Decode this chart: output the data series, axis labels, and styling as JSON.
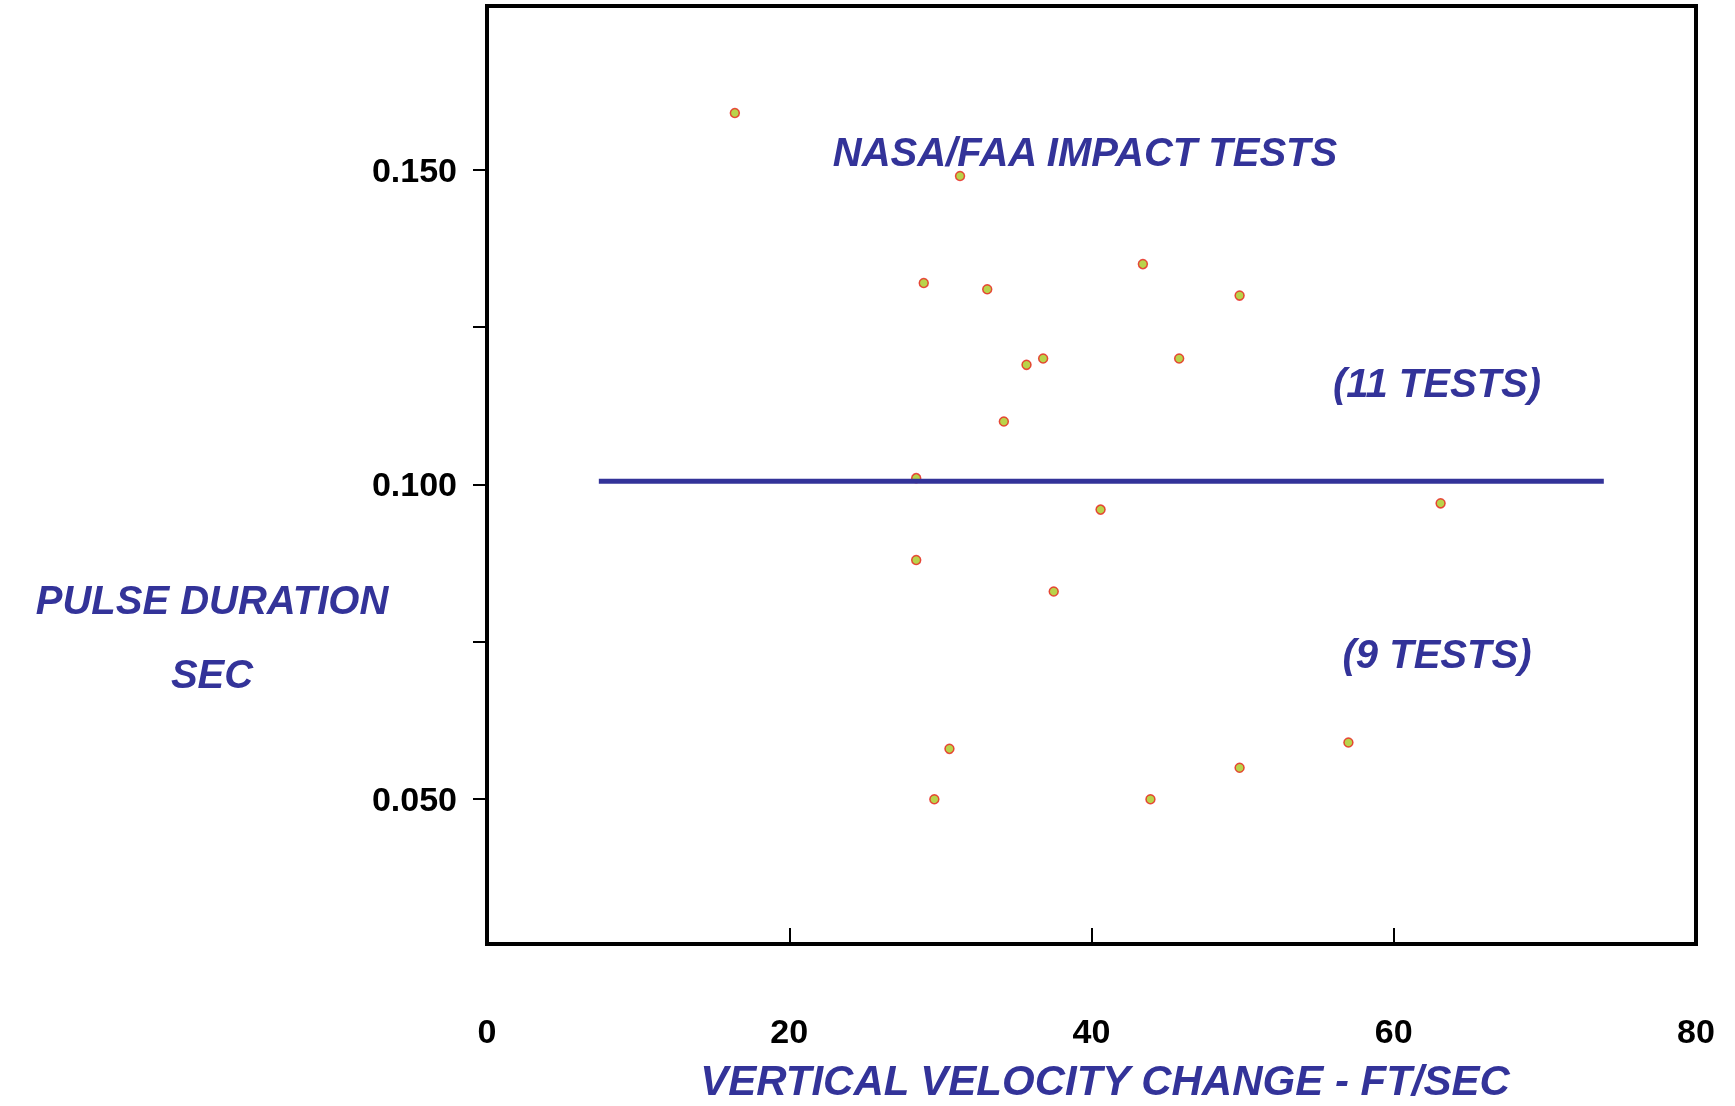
{
  "chart_data": {
    "type": "scatter",
    "xlabel": "VERTICAL VELOCITY CHANGE - FT/SEC",
    "ylabel": "PULSE DURATION\nSEC",
    "annotations": [
      "NASA/FAA IMPACT TESTS",
      "(11 TESTS)",
      "(9 TESTS)"
    ],
    "series": [
      {
        "color": "#a8c81e",
        "marker": "circle",
        "x": [
          16.4,
          31.3,
          28.9,
          33.1,
          43.4,
          49.8,
          35.7,
          36.8,
          45.8,
          34.2,
          28.4,
          40.6,
          63.1,
          28.4,
          37.5,
          30.6,
          29.6,
          43.9,
          49.8,
          57.0
        ],
        "values": [
          0.159,
          0.149,
          0.132,
          0.131,
          0.135,
          0.13,
          0.119,
          0.12,
          0.12,
          0.11,
          0.101,
          0.096,
          0.097,
          0.088,
          0.083,
          0.058,
          0.05,
          0.05,
          0.055,
          0.059
        ]
      },
      {
        "type": "line",
        "color": "#333399",
        "x": [
          7.4,
          73.9
        ],
        "values": [
          0.1005,
          0.1005
        ]
      }
    ],
    "xlim": [
      0,
      80
    ],
    "xticks": [
      0,
      20,
      40,
      60,
      80
    ],
    "ylim": [
      0.027,
      0.176
    ],
    "yticks": [
      {
        "value": 0.05,
        "label": "0.050"
      },
      {
        "value": 0.075,
        "label": null
      },
      {
        "value": 0.1,
        "label": "0.100"
      },
      {
        "value": 0.125,
        "label": null
      },
      {
        "value": 0.15,
        "label": "0.150"
      }
    ],
    "grid": false
  }
}
